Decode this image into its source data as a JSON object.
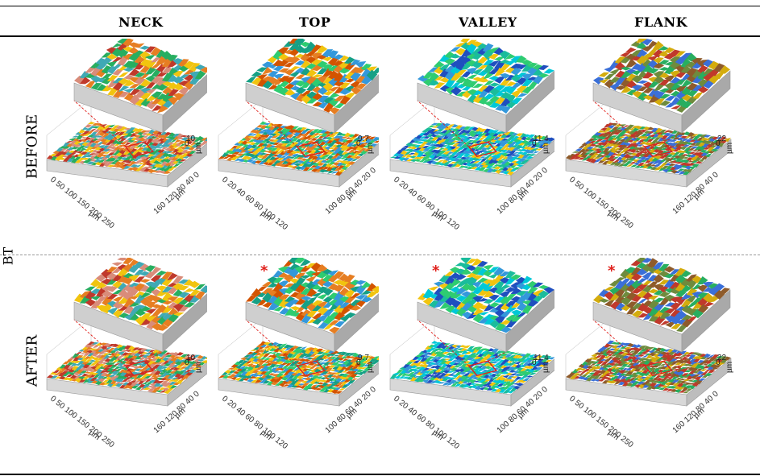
{
  "columns": [
    "NECK",
    "TOP",
    "VALLEY",
    "FLANK"
  ],
  "rows": [
    "BEFORE",
    "AFTER"
  ],
  "side_label": "BT",
  "significance_marker": "*",
  "unit": "µm",
  "panels": [
    {
      "z_max": "10",
      "x_ticks": "0 50 100 150 200 250",
      "y_ticks": "160 120 80 40 0",
      "palette": "warm",
      "star": false
    },
    {
      "z_max": "9.7",
      "x_ticks": "0 20 40 60 80 100 120",
      "y_ticks": "100 80 60 40 20 0",
      "palette": "mixed",
      "star": false
    },
    {
      "z_max": "11.4",
      "x_ticks": "0 20 40 60 80 100 120",
      "y_ticks": "100 80 60 40 20 0",
      "palette": "cool",
      "star": false
    },
    {
      "z_max": "22",
      "x_ticks": "0 50 100 150 200 250",
      "y_ticks": "160 120 80 40 0",
      "palette": "brown",
      "star": false
    },
    {
      "z_max": "10",
      "x_ticks": "0 50 100 150 200 250",
      "y_ticks": "160 120 80 40 0",
      "palette": "warm",
      "star": false
    },
    {
      "z_max": "9.7",
      "x_ticks": "0 20 40 60 80 100 120",
      "y_ticks": "100 80 60 40 20 0",
      "palette": "mixed",
      "star": true
    },
    {
      "z_max": "11.4",
      "x_ticks": "0 20 40 60 80 100 120",
      "y_ticks": "100 80 60 40 20 0",
      "palette": "cool",
      "star": true
    },
    {
      "z_max": "22",
      "x_ticks": "0 50 100 150 200 250",
      "y_ticks": "160 120 80 40 0",
      "palette": "brown",
      "star": true
    }
  ],
  "palettes": {
    "warm": [
      "#c0392b",
      "#e67e22",
      "#f1c40f",
      "#27ae60",
      "#3fa9b5",
      "#d98c7a"
    ],
    "mixed": [
      "#d35400",
      "#f1c40f",
      "#2ecc71",
      "#16a085",
      "#e67e22",
      "#3498db"
    ],
    "cool": [
      "#1abc9c",
      "#3498db",
      "#2ecc71",
      "#1f4fbf",
      "#f1c40f",
      "#00c8d7"
    ],
    "brown": [
      "#8e5b2b",
      "#c0392b",
      "#d4ac0d",
      "#27ae60",
      "#6e8b3d",
      "#3a6fd8"
    ]
  },
  "zoom_box_color": "#e0201b"
}
